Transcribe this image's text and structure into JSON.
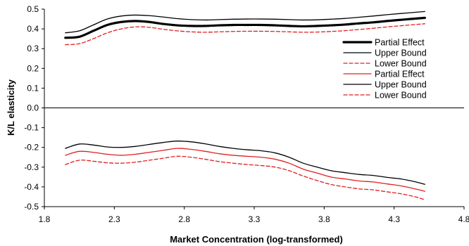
{
  "chart_data": {
    "type": "line",
    "xlabel": "Market Concentration (log-transformed)",
    "ylabel": "K/L elasticity",
    "xlim": [
      1.8,
      4.8
    ],
    "ylim": [
      -0.5,
      0.5
    ],
    "xticks": [
      "1.8",
      "2.3",
      "2.8",
      "3.3",
      "3.8",
      "4.3",
      "4.8"
    ],
    "yticks": [
      "0.5",
      "0.4",
      "0.3",
      "0.2",
      "0.1",
      "0.0",
      "-0.1",
      "-0.2",
      "-0.3",
      "-0.4",
      "-0.5"
    ],
    "zero_line": true,
    "grid": false,
    "legend_position": "right",
    "series": [
      {
        "name": "Partial Effect",
        "color": "#000000",
        "style": "solid-thick",
        "x": [
          1.95,
          2.05,
          2.15,
          2.25,
          2.35,
          2.45,
          2.55,
          2.65,
          2.75,
          2.85,
          2.95,
          3.05,
          3.15,
          3.25,
          3.35,
          3.45,
          3.55,
          3.65,
          3.75,
          3.85,
          3.95,
          4.05,
          4.15,
          4.25,
          4.35,
          4.45,
          4.52
        ],
        "y": [
          0.355,
          0.36,
          0.39,
          0.42,
          0.435,
          0.44,
          0.435,
          0.425,
          0.418,
          0.415,
          0.415,
          0.418,
          0.42,
          0.42,
          0.42,
          0.418,
          0.415,
          0.413,
          0.415,
          0.418,
          0.422,
          0.428,
          0.433,
          0.44,
          0.446,
          0.452,
          0.456
        ]
      },
      {
        "name": "Upper Bound",
        "color": "#000000",
        "style": "solid",
        "x": [
          1.95,
          2.05,
          2.15,
          2.25,
          2.35,
          2.45,
          2.55,
          2.65,
          2.75,
          2.85,
          2.95,
          3.05,
          3.15,
          3.25,
          3.35,
          3.45,
          3.55,
          3.65,
          3.75,
          3.85,
          3.95,
          4.05,
          4.15,
          4.25,
          4.35,
          4.45,
          4.52
        ],
        "y": [
          0.38,
          0.39,
          0.42,
          0.45,
          0.465,
          0.47,
          0.467,
          0.46,
          0.452,
          0.447,
          0.445,
          0.447,
          0.449,
          0.45,
          0.45,
          0.449,
          0.447,
          0.445,
          0.446,
          0.449,
          0.453,
          0.459,
          0.465,
          0.472,
          0.478,
          0.484,
          0.488
        ]
      },
      {
        "name": "Lower Bound",
        "color": "#e02020",
        "style": "dashed",
        "x": [
          1.95,
          2.05,
          2.15,
          2.25,
          2.35,
          2.45,
          2.55,
          2.65,
          2.75,
          2.85,
          2.95,
          3.05,
          3.15,
          3.25,
          3.35,
          3.45,
          3.55,
          3.65,
          3.75,
          3.85,
          3.95,
          4.05,
          4.15,
          4.25,
          4.35,
          4.45,
          4.52
        ],
        "y": [
          0.32,
          0.325,
          0.35,
          0.38,
          0.4,
          0.41,
          0.408,
          0.398,
          0.39,
          0.385,
          0.383,
          0.385,
          0.387,
          0.388,
          0.388,
          0.387,
          0.385,
          0.383,
          0.384,
          0.387,
          0.391,
          0.397,
          0.403,
          0.41,
          0.416,
          0.422,
          0.426
        ]
      },
      {
        "name": "Partial Effect",
        "color": "#e02020",
        "style": "solid",
        "x": [
          1.95,
          2.05,
          2.15,
          2.25,
          2.35,
          2.45,
          2.55,
          2.65,
          2.75,
          2.85,
          2.95,
          3.05,
          3.15,
          3.25,
          3.35,
          3.45,
          3.55,
          3.65,
          3.75,
          3.85,
          3.95,
          4.05,
          4.15,
          4.25,
          4.35,
          4.45,
          4.52
        ],
        "y": [
          -0.24,
          -0.22,
          -0.225,
          -0.235,
          -0.24,
          -0.235,
          -0.225,
          -0.215,
          -0.205,
          -0.21,
          -0.22,
          -0.232,
          -0.24,
          -0.245,
          -0.25,
          -0.26,
          -0.28,
          -0.31,
          -0.33,
          -0.35,
          -0.36,
          -0.37,
          -0.375,
          -0.385,
          -0.395,
          -0.41,
          -0.422
        ]
      },
      {
        "name": "Upper Bound",
        "color": "#000000",
        "style": "solid",
        "x": [
          1.95,
          2.05,
          2.15,
          2.25,
          2.35,
          2.45,
          2.55,
          2.65,
          2.75,
          2.85,
          2.95,
          3.05,
          3.15,
          3.25,
          3.35,
          3.45,
          3.55,
          3.65,
          3.75,
          3.85,
          3.95,
          4.05,
          4.15,
          4.25,
          4.35,
          4.45,
          4.52
        ],
        "y": [
          -0.205,
          -0.183,
          -0.188,
          -0.198,
          -0.2,
          -0.195,
          -0.185,
          -0.175,
          -0.168,
          -0.172,
          -0.182,
          -0.195,
          -0.205,
          -0.212,
          -0.217,
          -0.228,
          -0.25,
          -0.28,
          -0.3,
          -0.318,
          -0.328,
          -0.337,
          -0.342,
          -0.352,
          -0.36,
          -0.374,
          -0.387
        ]
      },
      {
        "name": "Lower Bound",
        "color": "#e02020",
        "style": "dashed",
        "x": [
          1.95,
          2.05,
          2.15,
          2.25,
          2.35,
          2.45,
          2.55,
          2.65,
          2.75,
          2.85,
          2.95,
          3.05,
          3.15,
          3.25,
          3.35,
          3.45,
          3.55,
          3.65,
          3.75,
          3.85,
          3.95,
          4.05,
          4.15,
          4.25,
          4.35,
          4.45,
          4.52
        ],
        "y": [
          -0.287,
          -0.265,
          -0.27,
          -0.278,
          -0.28,
          -0.275,
          -0.265,
          -0.255,
          -0.245,
          -0.25,
          -0.26,
          -0.272,
          -0.28,
          -0.287,
          -0.292,
          -0.3,
          -0.318,
          -0.345,
          -0.368,
          -0.388,
          -0.4,
          -0.41,
          -0.415,
          -0.425,
          -0.435,
          -0.45,
          -0.465
        ]
      }
    ]
  }
}
